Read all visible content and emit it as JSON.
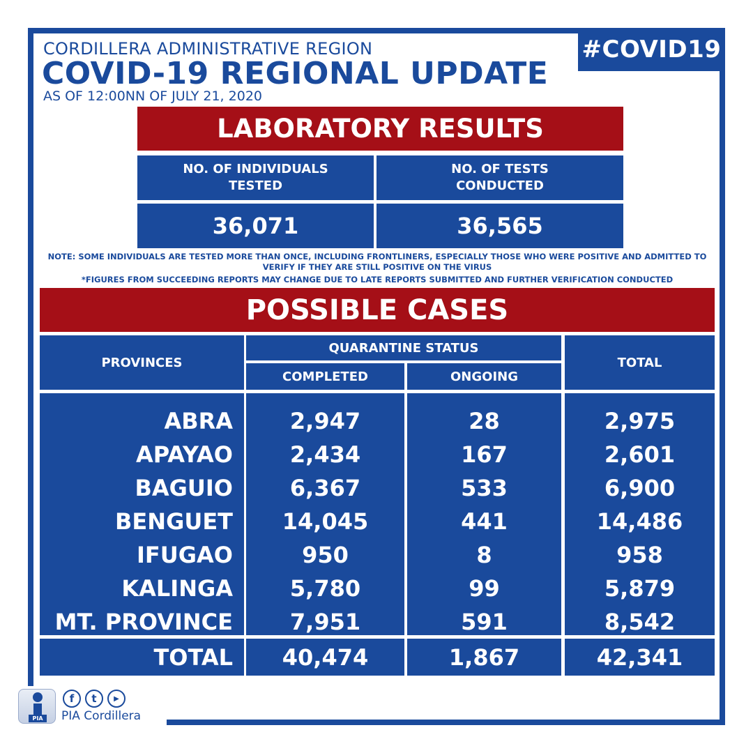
{
  "header": {
    "region": "CORDILLERA ADMINISTRATIVE REGION",
    "title": "COVID-19 REGIONAL UPDATE",
    "as_of": "AS OF 12:00NN OF JULY 21, 2020",
    "hashtag": "#COVID19"
  },
  "lab": {
    "title": "LABORATORY RESULTS",
    "col1_label": "NO. OF INDIVIDUALS TESTED",
    "col2_label": "NO. OF TESTS CONDUCTED",
    "col1_value": "36,071",
    "col2_value": "36,565",
    "note1": "NOTE: SOME INDIVIDUALS ARE TESTED MORE THAN ONCE, INCLUDING FRONTLINERS, ESPECIALLY THOSE WHO WERE POSITIVE AND ADMITTED TO VERIFY IF THEY ARE STILL POSITIVE ON THE VIRUS",
    "note2": "*FIGURES FROM SUCCEEDING REPORTS MAY CHANGE DUE TO LATE REPORTS SUBMITTED AND FURTHER VERIFICATION CONDUCTED"
  },
  "cases": {
    "title": "POSSIBLE CASES",
    "head_provinces": "PROVINCES",
    "head_quarantine": "QUARANTINE STATUS",
    "head_completed": "COMPLETED",
    "head_ongoing": "ONGOING",
    "head_total": "TOTAL",
    "rows": [
      {
        "province": "ABRA",
        "completed": "2,947",
        "ongoing": "28",
        "total": "2,975"
      },
      {
        "province": "APAYAO",
        "completed": "2,434",
        "ongoing": "167",
        "total": "2,601"
      },
      {
        "province": "BAGUIO",
        "completed": "6,367",
        "ongoing": "533",
        "total": "6,900"
      },
      {
        "province": "BENGUET",
        "completed": "14,045",
        "ongoing": "441",
        "total": "14,486"
      },
      {
        "province": "IFUGAO",
        "completed": "950",
        "ongoing": "8",
        "total": "958"
      },
      {
        "province": "KALINGA",
        "completed": "5,780",
        "ongoing": "99",
        "total": "5,879"
      },
      {
        "province": "MT. PROVINCE",
        "completed": "7,951",
        "ongoing": "591",
        "total": "8,542"
      }
    ],
    "total_row": {
      "label": "TOTAL",
      "completed": "40,474",
      "ongoing": "1,867",
      "total": "42,341"
    }
  },
  "footer": {
    "logo_text": "PIA",
    "name": "PIA Cordillera",
    "facebook_glyph": "f",
    "twitter_glyph": "t",
    "youtube_glyph": "▶",
    "brand_color": "#1a4a9c",
    "accent_color": "#a50f17"
  }
}
